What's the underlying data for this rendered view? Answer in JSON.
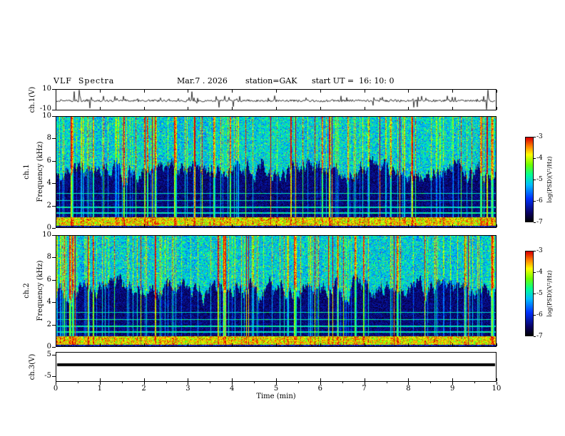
{
  "header": {
    "title": "VLF  Spectra",
    "date": "Mar.7 . 2026",
    "station": "station=GAK",
    "start_ut": "start UT =  16: 10: 0"
  },
  "panels": {
    "ch1_wave": {
      "label": "ch.1(V)",
      "ymax": "10",
      "ymin": "-10"
    },
    "ch1_spec": {
      "channel": "ch.1",
      "axis": "Frequency (kHz)",
      "yticks": [
        "10",
        "8",
        "6",
        "4",
        "2",
        "0"
      ]
    },
    "ch2_spec": {
      "channel": "ch.2",
      "axis": "Frequency (kHz)",
      "yticks": [
        "10",
        "8",
        "6",
        "4",
        "2",
        "0"
      ]
    },
    "ch3_wave": {
      "label": "ch.3(V)",
      "ymax": "5",
      "ymin": "-5"
    }
  },
  "xaxis": {
    "label": "Time (min)",
    "ticks": [
      "0",
      "1",
      "2",
      "3",
      "4",
      "5",
      "6",
      "7",
      "8",
      "9",
      "10"
    ]
  },
  "colorbar": {
    "label": "log(PSD)(V²/Hz)",
    "ticks": [
      "-3",
      "-4",
      "-5",
      "-6",
      "-7"
    ]
  },
  "chart_data": [
    {
      "type": "line",
      "name": "ch1_time_series",
      "ylabel": "ch.1(V)",
      "xlim": [
        0,
        10
      ],
      "ylim": [
        -10,
        10
      ],
      "yticks": [
        10,
        -10
      ],
      "description": "Broadband noise around 0 V with dense impulsive sferic spikes reaching toward the +/-10 V limits over 0-10 min"
    },
    {
      "type": "heatmap",
      "name": "ch1_spectrogram",
      "ylabel": "Frequency (kHz)",
      "xlim": [
        0,
        10
      ],
      "ylim": [
        0,
        10
      ],
      "yticks": [
        0,
        2,
        4,
        6,
        8,
        10
      ],
      "zlabel": "log(PSD)(V²/Hz)",
      "zlim": [
        -7,
        -3
      ],
      "zticks": [
        -3,
        -4,
        -5,
        -6,
        -7
      ],
      "colorbar_position": "right",
      "description": "VLF spectrogram ch.1: intense yellow/orange band below ~1 kHz (~-4 to -3), dark blue/black region ~2-6 kHz (~-7 to -6) with mountain-like dark wedges, speckled green/cyan 6-10 kHz (~-5), many narrow vertical impulsive streaks (green/yellow/red) spanning all frequencies, thin cyan horizontal lines near 1.4, 1.9, 2.5, 3.1 kHz"
    },
    {
      "type": "heatmap",
      "name": "ch2_spectrogram",
      "ylabel": "Frequency (kHz)",
      "xlim": [
        0,
        10
      ],
      "ylim": [
        0,
        10
      ],
      "yticks": [
        0,
        2,
        4,
        6,
        8,
        10
      ],
      "zlabel": "log(PSD)(V²/Hz)",
      "zlim": [
        -7,
        -3
      ],
      "zticks": [
        -3,
        -4,
        -5,
        -6,
        -7
      ],
      "colorbar_position": "right",
      "description": "VLF spectrogram ch.2: same structure as ch.1 - bright sub-1 kHz band, dark 2-6 kHz, speckled upper band, dense vertical impulsive streaks"
    },
    {
      "type": "line",
      "name": "ch3_time_series",
      "ylabel": "ch.3(V)",
      "xlim": [
        0,
        10
      ],
      "ylim": [
        -5,
        5
      ],
      "yticks": [
        5,
        -5
      ],
      "x": [
        0,
        10
      ],
      "values": [
        0,
        0
      ],
      "description": "Constant 0 V flat thick black trace across full record"
    }
  ],
  "xaxis_shared": {
    "label": "Time (min)",
    "xticks": [
      0,
      1,
      2,
      3,
      4,
      5,
      6,
      7,
      8,
      9,
      10
    ]
  }
}
